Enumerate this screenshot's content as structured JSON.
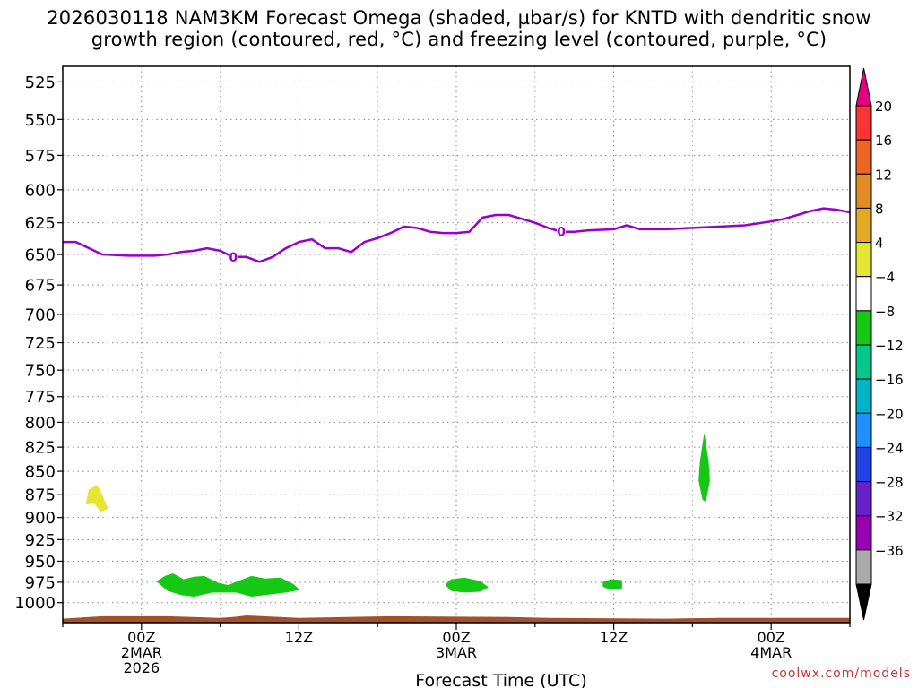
{
  "chart_data": {
    "type": "time-height",
    "title_line1": "2026030118 NAM3KM Forecast Omega (shaded, µbar/s) for KNTD with dendritic snow",
    "title_line2": "growth region (contoured, red, °C) and freezing level (contoured, purple, °C)",
    "xlabel": "Forecast Time (UTC)",
    "x_range_hours": [
      -18,
      12
    ],
    "x_ticks": [
      {
        "hour": 0,
        "lines": [
          "00Z",
          "2MAR",
          "2026"
        ]
      },
      {
        "hour": 6,
        "lines": [
          "12Z"
        ]
      },
      {
        "hour": 12,
        "lines": [
          "00Z",
          "3MAR"
        ]
      },
      {
        "hour": 18,
        "lines": [
          "12Z"
        ]
      },
      {
        "hour": 24,
        "lines": [
          "00Z",
          "4MAR"
        ]
      }
    ],
    "x_window": [
      -3,
      27
    ],
    "y_range_hpa": [
      1025,
      515
    ],
    "y_ticks": [
      525,
      550,
      575,
      600,
      625,
      650,
      675,
      700,
      725,
      750,
      775,
      800,
      825,
      850,
      875,
      900,
      925,
      950,
      975,
      1000
    ],
    "freezing_level": {
      "label": "0",
      "color": "#9900cc",
      "label_at_hours": [
        3.5,
        16
      ],
      "points": [
        [
          -3,
          640
        ],
        [
          -2.5,
          640
        ],
        [
          -1.5,
          650
        ],
        [
          -0.5,
          651
        ],
        [
          0.5,
          651
        ],
        [
          1,
          650
        ],
        [
          1.5,
          648
        ],
        [
          2,
          647
        ],
        [
          2.5,
          645
        ],
        [
          3,
          647
        ],
        [
          3.5,
          652
        ],
        [
          4,
          652
        ],
        [
          4.5,
          656
        ],
        [
          5,
          652
        ],
        [
          5.5,
          645
        ],
        [
          6,
          640
        ],
        [
          6.5,
          638
        ],
        [
          7,
          645
        ],
        [
          7.5,
          645
        ],
        [
          8,
          648
        ],
        [
          8.5,
          640
        ],
        [
          9,
          637
        ],
        [
          9.5,
          633
        ],
        [
          10,
          628
        ],
        [
          10.5,
          629
        ],
        [
          11,
          632
        ],
        [
          11.5,
          633
        ],
        [
          12,
          633
        ],
        [
          12.5,
          632
        ],
        [
          13,
          621
        ],
        [
          13.5,
          619
        ],
        [
          14,
          619
        ],
        [
          14.5,
          622
        ],
        [
          15,
          625
        ],
        [
          15.5,
          629
        ],
        [
          16,
          632
        ],
        [
          16.5,
          632
        ],
        [
          17,
          631
        ],
        [
          18,
          630
        ],
        [
          18.5,
          627
        ],
        [
          19,
          630
        ],
        [
          20,
          630
        ],
        [
          21,
          629
        ],
        [
          22,
          628
        ],
        [
          23,
          627
        ],
        [
          24,
          624
        ],
        [
          24.5,
          622
        ],
        [
          25,
          619
        ],
        [
          25.5,
          616
        ],
        [
          26,
          614
        ],
        [
          26.5,
          615
        ],
        [
          27,
          617
        ]
      ]
    },
    "omega_areas": [
      {
        "name": "positive-omega-area",
        "value_range": "4 to 8",
        "color": "#e6e632",
        "points": [
          [
            -2.1,
            885
          ],
          [
            -2.0,
            870
          ],
          [
            -1.7,
            865
          ],
          [
            -1.5,
            876
          ],
          [
            -1.3,
            890
          ],
          [
            -1.55,
            893
          ],
          [
            -1.8,
            884
          ]
        ]
      },
      {
        "name": "negative-omega-area",
        "value_range": "-8 to -4",
        "color": "#14c814",
        "points": [
          [
            0.6,
            974
          ],
          [
            0.9,
            968
          ],
          [
            1.2,
            965
          ],
          [
            1.6,
            972
          ],
          [
            2.0,
            969
          ],
          [
            2.4,
            968
          ],
          [
            2.9,
            976
          ],
          [
            3.3,
            979
          ],
          [
            3.7,
            974
          ],
          [
            4.2,
            968
          ],
          [
            4.7,
            971
          ],
          [
            5.3,
            970
          ],
          [
            5.8,
            978
          ],
          [
            6.0,
            984
          ],
          [
            5.5,
            987
          ],
          [
            4.7,
            990
          ],
          [
            4.2,
            992
          ],
          [
            3.6,
            987
          ],
          [
            2.7,
            987
          ],
          [
            2.0,
            992
          ],
          [
            1.5,
            990
          ],
          [
            1.0,
            985
          ]
        ]
      },
      {
        "name": "negative-omega-area",
        "value_range": "-8 to -4",
        "color": "#14c814",
        "points": [
          [
            11.6,
            978
          ],
          [
            11.8,
            972
          ],
          [
            12.3,
            970
          ],
          [
            12.9,
            974
          ],
          [
            13.2,
            981
          ],
          [
            12.9,
            986
          ],
          [
            12.3,
            987
          ],
          [
            11.8,
            985
          ]
        ]
      },
      {
        "name": "negative-omega-area",
        "value_range": "-8 to -4",
        "color": "#14c814",
        "points": [
          [
            17.6,
            975
          ],
          [
            17.9,
            972
          ],
          [
            18.3,
            973
          ],
          [
            18.3,
            982
          ],
          [
            17.9,
            984
          ],
          [
            17.6,
            980
          ]
        ]
      },
      {
        "name": "negative-omega-area",
        "value_range": "-8 to -4",
        "color": "#14c814",
        "points": [
          [
            21.3,
            840
          ],
          [
            21.45,
            813
          ],
          [
            21.6,
            840
          ],
          [
            21.65,
            860
          ],
          [
            21.5,
            882
          ],
          [
            21.4,
            880
          ],
          [
            21.25,
            860
          ]
        ]
      }
    ],
    "terrain": {
      "color": "#a0522d",
      "points": [
        [
          -3,
          1020
        ],
        [
          -1.5,
          1017
        ],
        [
          1,
          1017
        ],
        [
          3,
          1019
        ],
        [
          3.5,
          1018
        ],
        [
          4,
          1016
        ],
        [
          6,
          1019
        ],
        [
          9.5,
          1017
        ],
        [
          14,
          1018
        ],
        [
          15.5,
          1019
        ],
        [
          20,
          1020
        ],
        [
          22,
          1019
        ],
        [
          27,
          1019
        ]
      ]
    },
    "colorbar": {
      "bins": [
        {
          "label": "20",
          "color": "#ff3333"
        },
        {
          "label": "16",
          "color": "#ee6622"
        },
        {
          "label": "12",
          "color": "#e28b26"
        },
        {
          "label": "8",
          "color": "#e0aa22"
        },
        {
          "label": "4",
          "color": "#e6e632"
        },
        {
          "label": "-4",
          "color": "#ffffff"
        },
        {
          "label": "-8",
          "color": "#14c814"
        },
        {
          "label": "-12",
          "color": "#00c88c"
        },
        {
          "label": "-16",
          "color": "#00b4c8"
        },
        {
          "label": "-20",
          "color": "#1e90ff"
        },
        {
          "label": "-24",
          "color": "#2244e6"
        },
        {
          "label": "-28",
          "color": "#6622c8"
        },
        {
          "label": "-32",
          "color": "#9900b4"
        },
        {
          "label": "-36",
          "color": "#aaaaaa"
        }
      ],
      "top_cap_color": "#e6007e",
      "bottom_cap_color": "#000000"
    },
    "credit": "coolwx.com/models"
  }
}
